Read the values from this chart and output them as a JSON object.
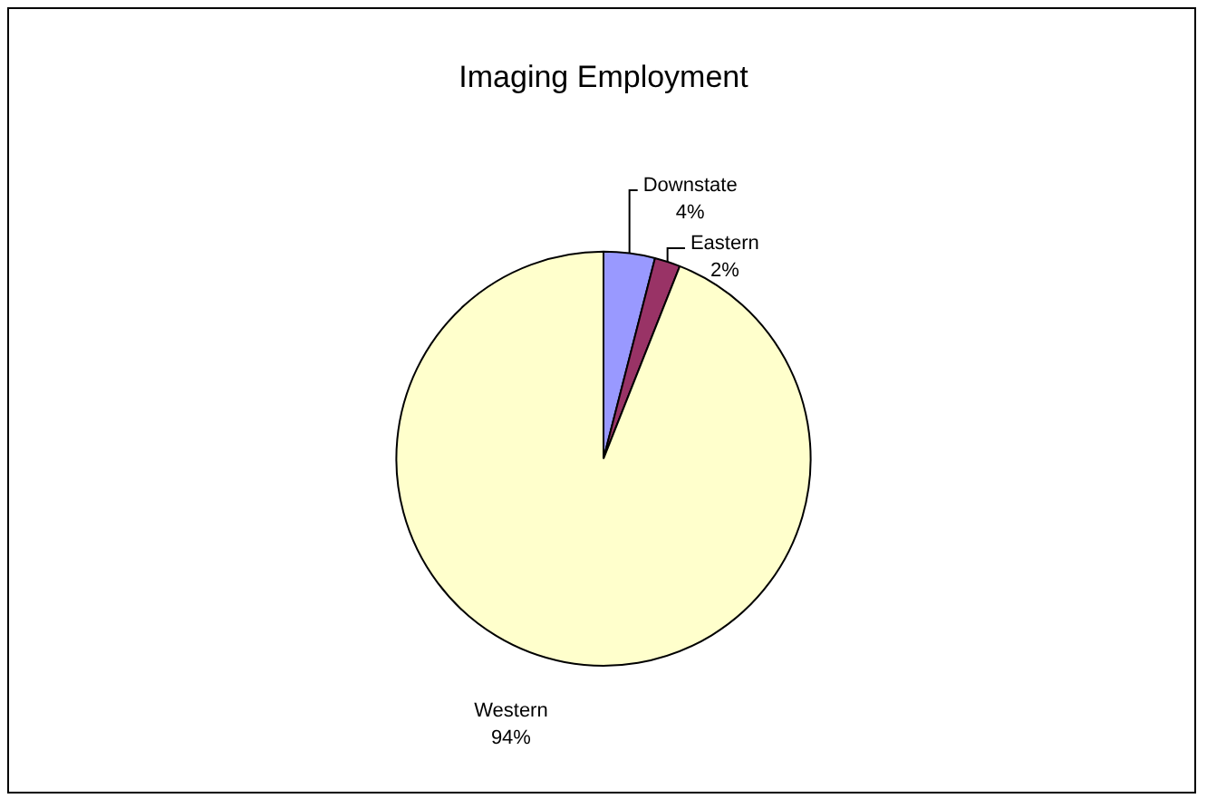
{
  "chart_data": {
    "type": "pie",
    "title": "Imaging Employment",
    "categories": [
      "Downstate",
      "Eastern",
      "Western"
    ],
    "values": [
      4,
      2,
      94
    ],
    "colors": [
      "#9999ff",
      "#993366",
      "#ffffcc"
    ],
    "value_labels": [
      "4%",
      "2%",
      "94%"
    ],
    "legend": false
  }
}
